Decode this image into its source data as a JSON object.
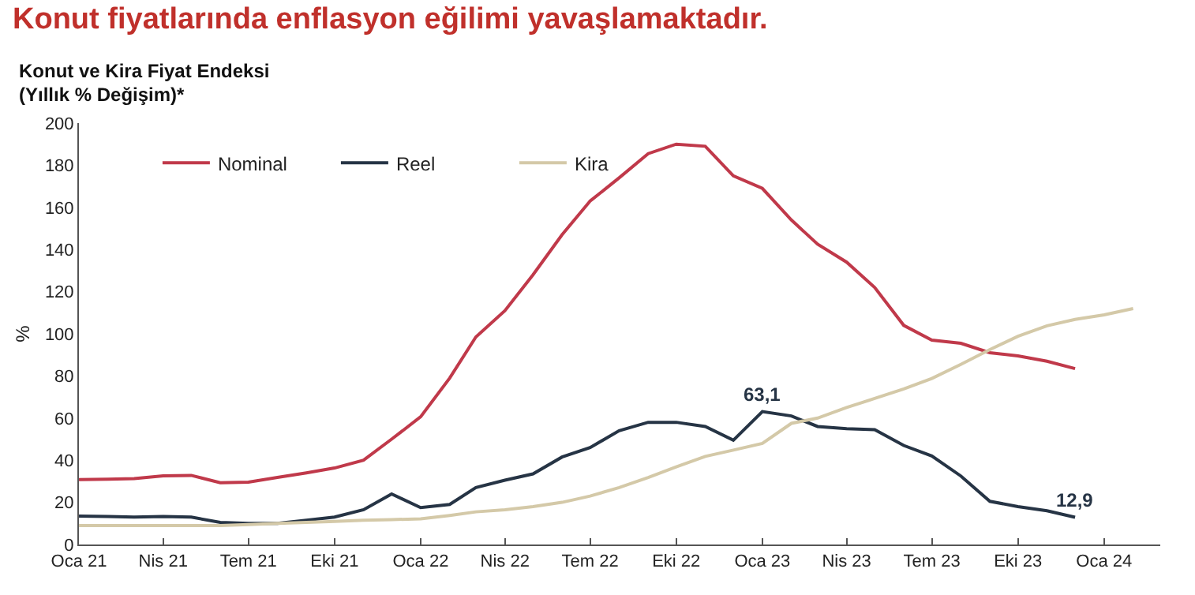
{
  "chart_data": {
    "type": "line",
    "title": "Konut fiyatlarında enflasyon eğilimi yavaşlamaktadır.",
    "subtitle": "Konut ve Kira Fiyat Endeksi\n(Yıllık % Değişim)*",
    "ylabel": "%",
    "x": [
      "2021-01",
      "2021-02",
      "2021-03",
      "2021-04",
      "2021-05",
      "2021-06",
      "2021-07",
      "2021-08",
      "2021-09",
      "2021-10",
      "2021-11",
      "2021-12",
      "2022-01",
      "2022-02",
      "2022-03",
      "2022-04",
      "2022-05",
      "2022-06",
      "2022-07",
      "2022-08",
      "2022-09",
      "2022-10",
      "2022-11",
      "2022-12",
      "2023-01",
      "2023-02",
      "2023-03",
      "2023-04",
      "2023-05",
      "2023-06",
      "2023-07",
      "2023-08",
      "2023-09",
      "2023-10",
      "2023-11",
      "2023-12"
    ],
    "series": [
      {
        "name": "Nominal",
        "color": "#c0394a",
        "values": [
          30.8,
          31,
          31.3,
          32.6,
          32.8,
          29.3,
          29.6,
          31.8,
          34,
          36.3,
          40,
          50,
          60.6,
          79,
          98.5,
          111,
          128,
          147,
          163,
          174,
          185.5,
          190,
          189,
          175,
          169,
          154,
          142.5,
          134,
          122,
          104,
          97,
          95.5,
          91,
          89.5,
          87,
          83.5
        ]
      },
      {
        "name": "Reel",
        "color": "#263445",
        "values": [
          13.5,
          13.3,
          13,
          13.3,
          13,
          10.5,
          10,
          10,
          11.5,
          13,
          16.5,
          24,
          17.5,
          19,
          27,
          30.5,
          33.5,
          41.5,
          46,
          54,
          58,
          58,
          56,
          49.5,
          63.1,
          61,
          56,
          55,
          54.5,
          47,
          42,
          32.5,
          20.5,
          18,
          16,
          12.9
        ]
      },
      {
        "name": "Kira",
        "color": "#d4c9a8",
        "x": [
          "2021-01",
          "2021-02",
          "2021-03",
          "2021-04",
          "2021-05",
          "2021-06",
          "2021-07",
          "2021-08",
          "2021-09",
          "2021-10",
          "2021-11",
          "2021-12",
          "2022-01",
          "2022-02",
          "2022-03",
          "2022-04",
          "2022-05",
          "2022-06",
          "2022-07",
          "2022-08",
          "2022-09",
          "2022-10",
          "2022-11",
          "2022-12",
          "2023-01",
          "2023-02",
          "2023-03",
          "2023-04",
          "2023-05",
          "2023-06",
          "2023-07",
          "2023-08",
          "2023-09",
          "2023-10",
          "2023-11",
          "2023-12",
          "2024-01",
          "2024-02"
        ],
        "values": [
          9,
          9,
          9,
          9,
          9,
          9,
          9.5,
          10,
          10.5,
          11,
          11.5,
          11.8,
          12.2,
          13.8,
          15.5,
          16.5,
          18,
          20,
          23,
          27,
          31.8,
          36.8,
          41.8,
          44.8,
          48,
          57.5,
          60,
          65,
          69.3,
          73.8,
          78.8,
          85.5,
          92.5,
          98.8,
          103.8,
          106.8,
          109,
          112
        ]
      }
    ],
    "annotations": [
      {
        "text": "63,1",
        "x": "2023-01",
        "y": 63.1
      },
      {
        "text": "12,9",
        "x": "2023-12",
        "y": 12.9
      }
    ],
    "xlim": [
      "2021-01",
      "2024-03"
    ],
    "xticks": [
      {
        "value": "2021-01",
        "label": "Oca 21"
      },
      {
        "value": "2021-04",
        "label": "Nis 21"
      },
      {
        "value": "2021-07",
        "label": "Tem 21"
      },
      {
        "value": "2021-10",
        "label": "Eki 21"
      },
      {
        "value": "2022-01",
        "label": "Oca 22"
      },
      {
        "value": "2022-04",
        "label": "Nis 22"
      },
      {
        "value": "2022-07",
        "label": "Tem 22"
      },
      {
        "value": "2022-10",
        "label": "Eki 22"
      },
      {
        "value": "2023-01",
        "label": "Oca 23"
      },
      {
        "value": "2023-04",
        "label": "Nis 23"
      },
      {
        "value": "2023-07",
        "label": "Tem 23"
      },
      {
        "value": "2023-10",
        "label": "Eki 23"
      },
      {
        "value": "2024-01",
        "label": "Oca 24"
      }
    ],
    "ylim": [
      0,
      200
    ],
    "yticks": [
      0,
      20,
      40,
      60,
      80,
      100,
      120,
      140,
      160,
      180,
      200
    ],
    "grid": false,
    "legend": "top left",
    "marker": "none",
    "line_style": "solid"
  }
}
